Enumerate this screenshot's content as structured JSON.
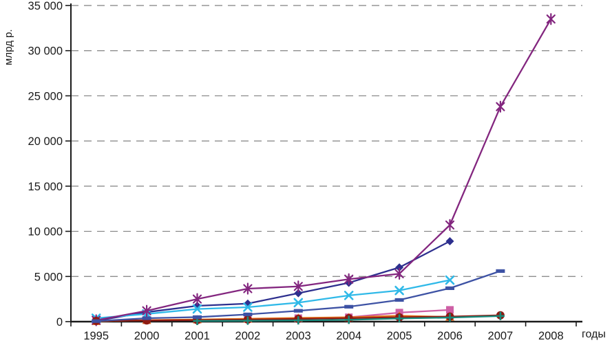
{
  "chart_data": {
    "type": "line",
    "title": "",
    "ylabel": "млрд р.",
    "xlabel": "годы",
    "ylim": [
      0,
      35000
    ],
    "ytick_step": 5000,
    "ytick_labels": [
      "0",
      "5 000",
      "10 000",
      "15 000",
      "20 000",
      "25 000",
      "30 000",
      "35 000"
    ],
    "grid": "horizontal-dashed",
    "legend_position": "none",
    "categories": [
      "1995",
      "2000",
      "2001",
      "2002",
      "2003",
      "2004",
      "2005",
      "2006",
      "2007",
      "2008"
    ],
    "series": [
      {
        "name": "diamond-navy",
        "marker": "diamond",
        "color": "#2D2F8E",
        "values": [
          100,
          1050,
          1750,
          2000,
          3150,
          4300,
          6000,
          8900,
          null,
          null
        ]
      },
      {
        "name": "square-pink",
        "marker": "square",
        "color": "#CE5FA5",
        "values": [
          50,
          160,
          220,
          300,
          380,
          480,
          1000,
          1300,
          null,
          null
        ]
      },
      {
        "name": "triangle-orange",
        "marker": "triangle",
        "color": "#E2711C",
        "values": [
          40,
          170,
          240,
          320,
          420,
          480,
          650,
          520,
          null,
          null
        ]
      },
      {
        "name": "x-cyan",
        "marker": "x",
        "color": "#2FB9E8",
        "values": [
          380,
          850,
          1400,
          1600,
          2100,
          2900,
          3450,
          4600,
          null,
          null
        ]
      },
      {
        "name": "asterisk-purple",
        "marker": "asterisk",
        "color": "#83267F",
        "values": [
          150,
          1200,
          2500,
          3650,
          3900,
          4700,
          5300,
          10700,
          23800,
          33500
        ]
      },
      {
        "name": "circle-darkred",
        "marker": "circle",
        "color": "#8E1A12",
        "values": [
          90,
          130,
          170,
          230,
          300,
          380,
          480,
          560,
          700,
          null
        ]
      },
      {
        "name": "plus-teal",
        "marker": "plus",
        "color": "#178A7B",
        "values": [
          null,
          null,
          80,
          100,
          140,
          200,
          350,
          450,
          620,
          null
        ]
      },
      {
        "name": "dash-blue",
        "marker": "dash",
        "color": "#3D52A4",
        "values": [
          60,
          380,
          500,
          800,
          1200,
          1650,
          2400,
          3700,
          5600,
          null
        ]
      }
    ]
  }
}
